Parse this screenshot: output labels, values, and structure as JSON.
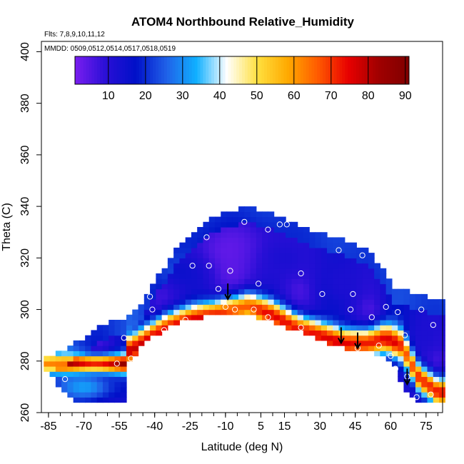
{
  "chart_data": {
    "type": "heatmap",
    "title": "ATOM4 Northbound Relative_Humidity",
    "subtitle_flights": "Flts: 7,8,9,10,11,12",
    "subtitle_dates": "MMDD: 0509,0512,0514,0517,0518,0519",
    "xlabel": "Latitude (deg N)",
    "ylabel": "Theta (C)",
    "xlim": [
      -88,
      82
    ],
    "ylim": [
      260,
      404
    ],
    "x_ticks": [
      -85,
      -70,
      -55,
      -40,
      -25,
      -10,
      5,
      15,
      30,
      45,
      60,
      75
    ],
    "y_ticks": [
      260,
      280,
      300,
      320,
      340,
      360,
      380,
      400
    ],
    "colorbar": {
      "range": [
        1,
        91
      ],
      "ticks": [
        10,
        20,
        30,
        40,
        50,
        60,
        70,
        80,
        90
      ],
      "colors": [
        "#7a1ef0",
        "#2a0fd6",
        "#0010c8",
        "#2060e8",
        "#10b0ff",
        "#ffffff",
        "#ffe040",
        "#ffaa00",
        "#ff5a00",
        "#e80000",
        "#a00000",
        "#800000"
      ]
    },
    "domain": {
      "top_theta": [
        [
          -85,
          282
        ],
        [
          -75,
          286
        ],
        [
          -62,
          294
        ],
        [
          -52,
          297
        ],
        [
          -47,
          301
        ],
        [
          -42,
          308
        ],
        [
          -35,
          318
        ],
        [
          -28,
          327
        ],
        [
          -20,
          333
        ],
        [
          -10,
          338
        ],
        [
          0,
          340
        ],
        [
          10,
          337
        ],
        [
          20,
          333
        ],
        [
          30,
          330
        ],
        [
          40,
          327
        ],
        [
          50,
          324
        ],
        [
          55,
          318
        ],
        [
          62,
          308
        ],
        [
          72,
          306
        ],
        [
          81,
          303
        ]
      ],
      "bottom_theta": [
        [
          -85,
          276
        ],
        [
          -78,
          267
        ],
        [
          -72,
          264
        ],
        [
          -60,
          264
        ],
        [
          -53,
          264
        ],
        [
          -52,
          278
        ],
        [
          -45,
          286
        ],
        [
          -40,
          290
        ],
        [
          -30,
          295
        ],
        [
          -20,
          297
        ],
        [
          -10,
          298
        ],
        [
          0,
          298
        ],
        [
          10,
          295
        ],
        [
          20,
          292
        ],
        [
          30,
          288
        ],
        [
          40,
          285
        ],
        [
          50,
          284
        ],
        [
          58,
          281
        ],
        [
          62,
          277
        ],
        [
          65,
          271
        ],
        [
          70,
          265
        ],
        [
          80,
          264
        ]
      ]
    },
    "moist_layers": [
      {
        "lat": [
          -85,
          -80,
          -72,
          -60,
          -53
        ],
        "theta_mid": [
          279,
          279,
          279,
          279,
          279
        ],
        "half": 2.5,
        "rh": 82
      },
      {
        "lat": [
          -50,
          -42,
          -35,
          -25,
          -15,
          -8,
          0,
          10,
          20,
          30,
          40,
          50,
          58,
          65,
          72,
          80
        ],
        "theta_mid": [
          284,
          289,
          293,
          296,
          298,
          300,
          302,
          298,
          293,
          290,
          287,
          287,
          289,
          286,
          274,
          268
        ],
        "half": 4,
        "rh": 76
      }
    ],
    "dry_pockets": [
      {
        "lat": -5,
        "theta": 322,
        "rh": 3,
        "rx": 28,
        "ry": 14
      },
      {
        "lat": 15,
        "theta": 320,
        "rh": 12,
        "rx": 14,
        "ry": 10
      },
      {
        "lat": 40,
        "theta": 310,
        "rh": 12,
        "rx": 12,
        "ry": 12
      },
      {
        "lat": 75,
        "theta": 290,
        "rh": 12,
        "rx": 8,
        "ry": 10
      },
      {
        "lat": -30,
        "theta": 315,
        "rh": 15,
        "rx": 12,
        "ry": 8
      },
      {
        "lat": -70,
        "theta": 270,
        "rh": 32,
        "rx": 14,
        "ry": 6
      }
    ],
    "obs_points": [
      [
        -78,
        273
      ],
      [
        -56,
        279
      ],
      [
        -53,
        289
      ],
      [
        -41,
        300
      ],
      [
        -42,
        305
      ],
      [
        -36,
        292
      ],
      [
        -27,
        296
      ],
      [
        -26,
        331
      ],
      [
        -24,
        317
      ],
      [
        -18,
        328
      ],
      [
        -17,
        317
      ],
      [
        -13,
        308
      ],
      [
        -8,
        315
      ],
      [
        -10,
        301
      ],
      [
        -6,
        300
      ],
      [
        -2,
        334
      ],
      [
        2,
        300
      ],
      [
        4,
        310
      ],
      [
        8,
        331
      ],
      [
        13,
        333
      ],
      [
        16,
        333
      ],
      [
        22,
        314
      ],
      [
        22,
        293
      ],
      [
        31,
        306
      ],
      [
        38,
        323
      ],
      [
        43,
        300
      ],
      [
        44,
        306
      ],
      [
        46,
        285
      ],
      [
        48,
        321
      ],
      [
        52,
        297
      ],
      [
        55,
        286
      ],
      [
        58,
        301
      ],
      [
        60,
        282
      ],
      [
        62,
        277
      ],
      [
        63,
        299
      ],
      [
        66,
        290
      ],
      [
        67,
        274
      ],
      [
        71,
        266
      ],
      [
        73,
        300
      ],
      [
        77,
        267
      ],
      [
        78,
        294
      ],
      [
        8,
        297
      ],
      [
        -50,
        281
      ]
    ],
    "arrows": [
      {
        "lat": -9,
        "theta": 304
      },
      {
        "lat": 39,
        "theta": 287
      },
      {
        "lat": 46,
        "theta": 285
      },
      {
        "lat": 67,
        "theta": 271
      }
    ]
  }
}
